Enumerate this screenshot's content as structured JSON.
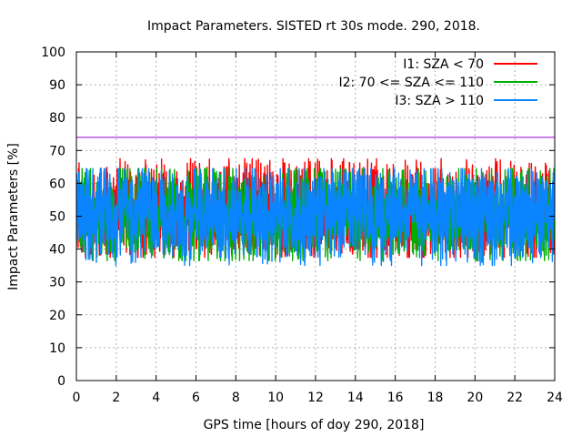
{
  "chart_data": {
    "type": "line",
    "title": "Impact Parameters. SISTED rt 30s mode. 290, 2018.",
    "xlabel": "GPS time [hours of doy 290, 2018]",
    "ylabel": "Impact Parameters [%]",
    "xlim": [
      0,
      24
    ],
    "ylim": [
      0,
      100
    ],
    "xticks": [
      0,
      2,
      4,
      6,
      8,
      10,
      12,
      14,
      16,
      18,
      20,
      22,
      24
    ],
    "yticks": [
      0,
      10,
      20,
      30,
      40,
      50,
      60,
      70,
      80,
      90,
      100
    ],
    "grid": true,
    "legend_position": "top-right",
    "threshold": {
      "value": 74,
      "color": "#9400d3"
    },
    "series": [
      {
        "name": "I1: SZA < 70",
        "color": "#ff0000",
        "center": 51,
        "range": [
          37.5,
          67.5
        ],
        "hour_ranges": [
          [
            0,
            24
          ]
        ],
        "seed": 11
      },
      {
        "name": "I2: 70 <= SZA <= 110",
        "color": "#00b000",
        "center": 51,
        "range": [
          36.5,
          64.5
        ],
        "hour_ranges": [
          [
            0,
            24
          ]
        ],
        "seed": 23
      },
      {
        "name": "I3: SZA > 110",
        "color": "#0a84ff",
        "center": 51,
        "range": [
          35,
          64.5
        ],
        "hour_ranges": [
          [
            0,
            24
          ]
        ],
        "seed": 37
      }
    ]
  }
}
